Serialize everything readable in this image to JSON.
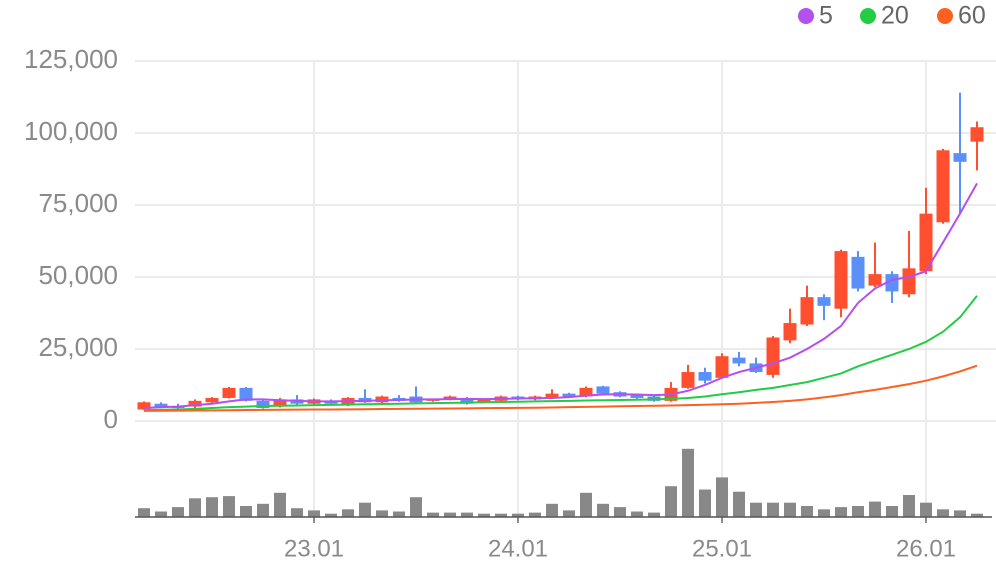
{
  "chart_data": {
    "type": "candlestick",
    "categories": [
      null,
      null,
      null,
      null,
      null,
      null,
      null,
      null,
      null,
      null,
      "23.01",
      null,
      null,
      null,
      null,
      null,
      null,
      null,
      null,
      null,
      null,
      null,
      "24.01",
      null,
      null,
      null,
      null,
      null,
      null,
      null,
      null,
      null,
      null,
      null,
      "25.01",
      null,
      null,
      null,
      null,
      null,
      null,
      null,
      null,
      null,
      null,
      null,
      "26.01",
      null,
      null,
      null
    ],
    "open": [
      4000,
      6000,
      5000,
      5000,
      6500,
      8000,
      11500,
      7000,
      5000,
      7500,
      6000,
      7000,
      5500,
      8000,
      6500,
      8000,
      8500,
      7000,
      7500,
      8000,
      6500,
      7000,
      8500,
      7500,
      8000,
      9500,
      8500,
      12000,
      10000,
      9000,
      8500,
      7000,
      11500,
      17000,
      15000,
      22000,
      20000,
      16000,
      28000,
      33500,
      43000,
      39000,
      57000,
      47000,
      51000,
      44000,
      52000,
      69000,
      93000,
      97000
    ],
    "high": [
      6800,
      6500,
      6000,
      7500,
      8300,
      11800,
      11800,
      7500,
      8000,
      9000,
      7800,
      7500,
      8300,
      11000,
      8800,
      9000,
      12000,
      7800,
      8800,
      8300,
      7800,
      8800,
      8800,
      8800,
      11000,
      9800,
      12000,
      12200,
      10300,
      9300,
      8800,
      13500,
      19500,
      18500,
      23500,
      24000,
      22000,
      29500,
      39000,
      47000,
      44000,
      59500,
      59000,
      62000,
      52000,
      66000,
      81000,
      94500,
      114000,
      104000
    ],
    "low": [
      3800,
      4500,
      4000,
      4500,
      6200,
      7800,
      6800,
      4300,
      4700,
      5700,
      5700,
      5700,
      5200,
      6300,
      6200,
      6700,
      6200,
      6700,
      7200,
      5700,
      6200,
      6700,
      7200,
      7200,
      7700,
      8200,
      8200,
      9200,
      8200,
      7700,
      6700,
      6700,
      11200,
      13000,
      14700,
      19000,
      16700,
      15000,
      27000,
      33000,
      35000,
      36000,
      45000,
      46500,
      41000,
      43000,
      51000,
      68500,
      72000,
      87000
    ],
    "close": [
      6500,
      5000,
      4500,
      7000,
      8000,
      11500,
      7000,
      4500,
      7500,
      6000,
      7500,
      6000,
      8000,
      6500,
      8500,
      7000,
      6500,
      7500,
      8500,
      6000,
      7500,
      8500,
      7500,
      8500,
      9500,
      8500,
      11500,
      9500,
      8500,
      8000,
      7000,
      11500,
      17000,
      14000,
      22500,
      20000,
      17000,
      29000,
      34000,
      43000,
      40000,
      59000,
      46000,
      51000,
      45000,
      53000,
      72000,
      94000,
      90000,
      102000
    ],
    "up_color": "#ff4f2f",
    "down_color": "#5b8ff9",
    "ylim": [
      0,
      125000
    ],
    "yticks": [
      0,
      {
        "value": 25000,
        "label": "25,000"
      },
      {
        "value": 50000,
        "label": "50,000"
      },
      {
        "value": 75000,
        "label": "75,000"
      },
      {
        "value": 100000,
        "label": "100,000"
      },
      {
        "value": 125000,
        "label": "125,000"
      }
    ],
    "grid": true,
    "legend": "top-right",
    "series": [
      {
        "name": "5",
        "color": "#b44ff0",
        "values": [
          4500,
          4800,
          5000,
          5500,
          6000,
          6800,
          7500,
          7500,
          7200,
          7000,
          6800,
          6800,
          6900,
          7000,
          7200,
          7300,
          7500,
          7500,
          7600,
          7700,
          7600,
          7700,
          7800,
          7900,
          8000,
          8300,
          8800,
          9200,
          9300,
          9200,
          9000,
          9200,
          10500,
          12500,
          15000,
          17000,
          18500,
          20000,
          22000,
          25000,
          28500,
          33000,
          41000,
          46000,
          49000,
          50000,
          52000,
          62000,
          72000,
          82500
        ]
      },
      {
        "name": "20",
        "color": "#22cc44",
        "values": [
          3800,
          3900,
          4000,
          4200,
          4500,
          4800,
          5000,
          5200,
          5300,
          5400,
          5500,
          5600,
          5700,
          5800,
          5900,
          6000,
          6100,
          6200,
          6300,
          6400,
          6500,
          6600,
          6700,
          6800,
          6900,
          7000,
          7100,
          7200,
          7300,
          7400,
          7500,
          7700,
          8000,
          8500,
          9300,
          10000,
          10800,
          11500,
          12500,
          13500,
          15000,
          16500,
          19000,
          21000,
          23000,
          25000,
          27500,
          31000,
          36000,
          43500
        ]
      },
      {
        "name": "60",
        "color": "#ff6020",
        "values": [
          3500,
          3550,
          3600,
          3650,
          3700,
          3750,
          3800,
          3850,
          3900,
          3950,
          4000,
          4000,
          4050,
          4100,
          4150,
          4200,
          4250,
          4300,
          4350,
          4400,
          4450,
          4500,
          4550,
          4600,
          4700,
          4800,
          4900,
          5000,
          5100,
          5200,
          5300,
          5400,
          5500,
          5650,
          5800,
          6000,
          6300,
          6600,
          7000,
          7500,
          8200,
          9000,
          10000,
          10800,
          11800,
          12800,
          14000,
          15500,
          17200,
          19200
        ]
      }
    ],
    "volume": {
      "color": "#888888",
      "ylim": [
        0,
        70
      ],
      "values": [
        8,
        5,
        9,
        17,
        18,
        19,
        10,
        12,
        22,
        8,
        6,
        3,
        7,
        13,
        6,
        5,
        18,
        4,
        4,
        4,
        3,
        3,
        3,
        4,
        12,
        6,
        22,
        12,
        9,
        5,
        4,
        28,
        62,
        25,
        36,
        23,
        13,
        13,
        13,
        10,
        7,
        9,
        10,
        14,
        10,
        20,
        13,
        7,
        6,
        3
      ]
    }
  }
}
